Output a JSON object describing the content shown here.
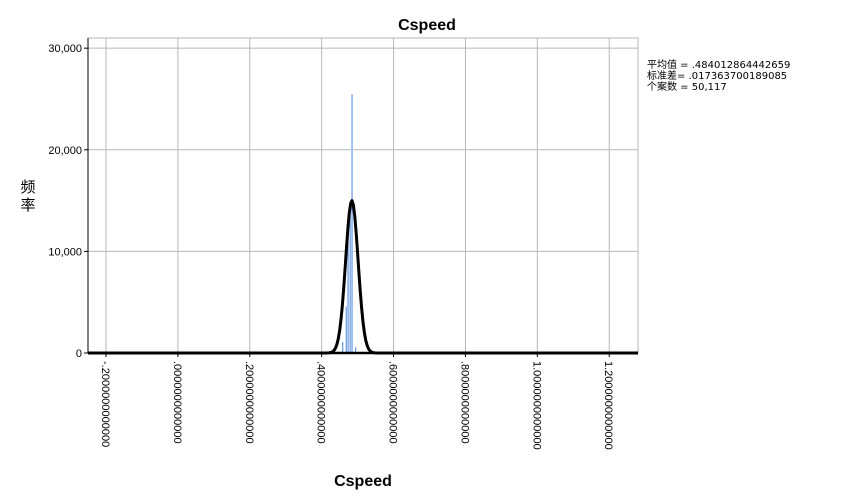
{
  "chart_data": {
    "type": "bar",
    "title": "Cspeed",
    "xlabel": "Cspeed",
    "ylabel_chars": [
      "频",
      "率"
    ],
    "xlim": [
      -0.25,
      1.28
    ],
    "ylim": [
      0,
      31000
    ],
    "x_ticks": [
      -0.2,
      0.0,
      0.2,
      0.4,
      0.6,
      0.8,
      1.0,
      1.2
    ],
    "x_tick_labels": [
      "-.2000000000000",
      ".0000000000000",
      ".2000000000000",
      ".4000000000000",
      ".6000000000000",
      ".8000000000000",
      "1.0000000000000",
      "1.2000000000000"
    ],
    "y_ticks": [
      0,
      10000,
      20000,
      30000
    ],
    "y_tick_labels": [
      "0",
      "10,000",
      "20,000",
      "30,000"
    ],
    "grid": true,
    "bin_width": 0.0049,
    "bins": [
      {
        "x": 0.4475,
        "y": 150
      },
      {
        "x": 0.4585,
        "y": 1100
      },
      {
        "x": 0.4685,
        "y": 4600
      },
      {
        "x": 0.4735,
        "y": 11400
      },
      {
        "x": 0.4795,
        "y": 15000
      },
      {
        "x": 0.4845,
        "y": 25500
      },
      {
        "x": 0.4945,
        "y": 600
      },
      {
        "x": 0.5045,
        "y": 80
      }
    ],
    "normal_curve": {
      "mean": 0.484012864442659,
      "sd": 0.017363700189085,
      "n": 50117,
      "peak": 15000
    },
    "stats": [
      "平均值 = .484012864442659",
      "标准差= .017363700189085",
      "个案数 = 50,117"
    ],
    "bar_color": "#5b93de",
    "curve_color": "#000000",
    "grid_color": "#b7b7b7"
  }
}
